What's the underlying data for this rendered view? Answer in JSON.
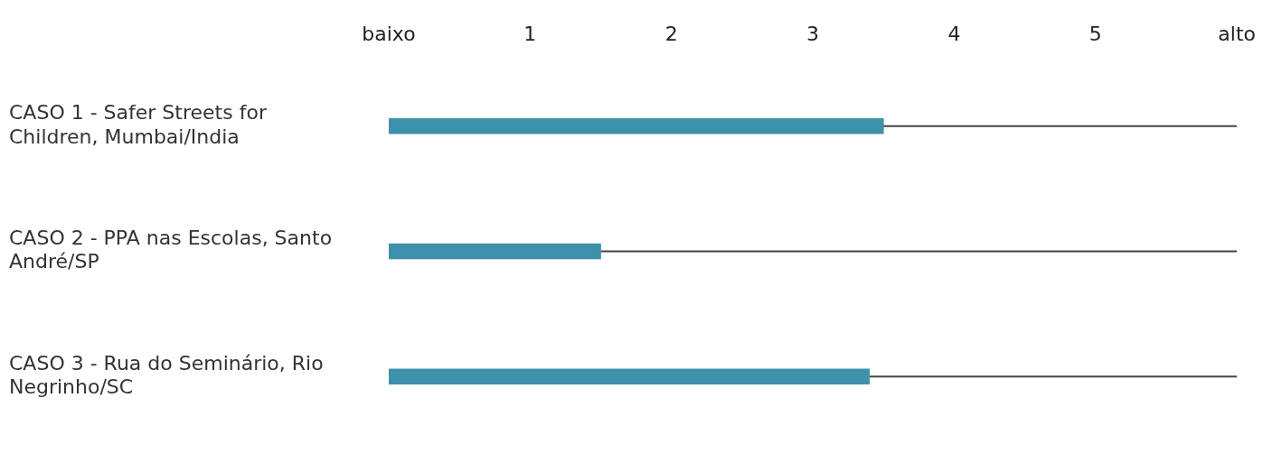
{
  "chart_data": {
    "type": "bar",
    "orientation": "horizontal",
    "categories": [
      "CASO 1 - Safer Streets for Children, Mumbai/India",
      "CASO 2 - PPA nas Escolas, Santo André/SP",
      "CASO 3 - Rua do Seminário, Rio Negrinho/SC"
    ],
    "values": [
      3.5,
      1.5,
      3.4
    ],
    "color": "#3d91ab",
    "xlim": [
      0,
      6
    ],
    "xticks": [
      {
        "value": 0,
        "label": "baixo"
      },
      1,
      2,
      3,
      4,
      5,
      {
        "value": 6,
        "label": "alto"
      }
    ],
    "grid": false,
    "legend": false
  }
}
